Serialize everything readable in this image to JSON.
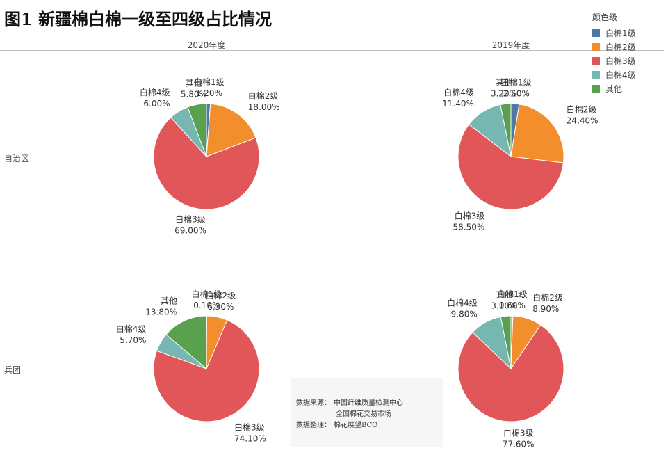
{
  "title": "图1 新疆棉白棉一级至四级占比情况",
  "columns": [
    "2020年度",
    "2019年度"
  ],
  "rows": [
    "自治区",
    "兵团"
  ],
  "legend": {
    "title": "颜色级",
    "items": [
      {
        "label": "白棉1级",
        "color": "#4e79a7"
      },
      {
        "label": "白棉2级",
        "color": "#f28e2b"
      },
      {
        "label": "白棉3级",
        "color": "#e15759"
      },
      {
        "label": "白棉4级",
        "color": "#76b7b2"
      },
      {
        "label": "其他",
        "color": "#59a14f"
      }
    ]
  },
  "source": {
    "label1": "数据来源：",
    "value1": "中国纤维质量检测中心",
    "value2": "全国棉花交易市场",
    "label2": "数据整理：",
    "value3": "棉花展望BCO"
  },
  "chart_data": [
    {
      "type": "pie",
      "row": "自治区",
      "column": "2020年度",
      "categories": [
        "白棉1级",
        "白棉2级",
        "白棉3级",
        "白棉4级",
        "其他"
      ],
      "values": [
        1.2,
        18.0,
        69.0,
        6.0,
        5.8
      ],
      "labels": [
        "1.20%",
        "18.00%",
        "69.00%",
        "6.00%",
        "5.80%"
      ]
    },
    {
      "type": "pie",
      "row": "自治区",
      "column": "2019年度",
      "categories": [
        "白棉1级",
        "白棉2级",
        "白棉3级",
        "白棉4级",
        "其他"
      ],
      "values": [
        2.5,
        24.4,
        58.5,
        11.4,
        3.2
      ],
      "labels": [
        "2.50%",
        "24.40%",
        "58.50%",
        "11.40%",
        "3.20%"
      ]
    },
    {
      "type": "pie",
      "row": "兵团",
      "column": "2020年度",
      "categories": [
        "白棉1级",
        "白棉2级",
        "白棉3级",
        "白棉4级",
        "其他"
      ],
      "values": [
        0.1,
        6.3,
        74.1,
        5.7,
        13.8
      ],
      "labels": [
        "0.10%",
        "6.30%",
        "74.10%",
        "5.70%",
        "13.80%"
      ]
    },
    {
      "type": "pie",
      "row": "兵团",
      "column": "2019年度",
      "categories": [
        "白棉1级",
        "白棉2级",
        "白棉3级",
        "白棉4级",
        "其他"
      ],
      "values": [
        0.6,
        8.9,
        77.6,
        9.8,
        3.1
      ],
      "labels": [
        "0.60%",
        "8.90%",
        "77.60%",
        "9.80%",
        "3.10%"
      ]
    }
  ]
}
